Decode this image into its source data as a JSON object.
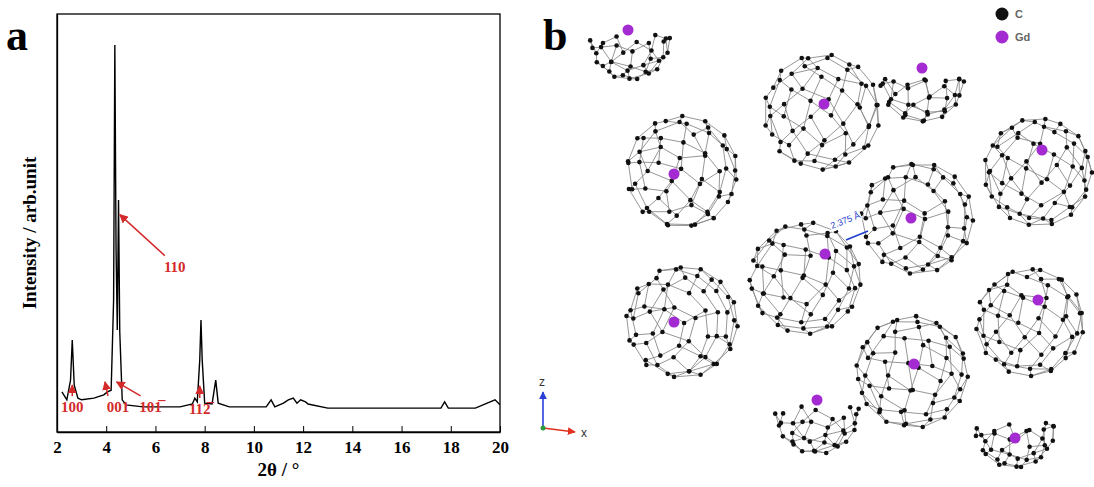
{
  "chart_data": {
    "type": "line",
    "panel_label": "a",
    "x_label": "2θ / °",
    "y_label": "Intensity / arb.unit",
    "color": "#000000",
    "grid": false,
    "tick_labels": "x",
    "xlim": [
      2,
      20
    ],
    "xticks": [
      2,
      4,
      6,
      8,
      10,
      12,
      14,
      16,
      18,
      20
    ],
    "ylim": [
      0,
      100
    ],
    "x": [
      2.2,
      2.4,
      2.55,
      2.62,
      2.7,
      2.85,
      3.0,
      3.5,
      3.9,
      4.05,
      4.2,
      4.3,
      4.35,
      4.4,
      4.45,
      4.5,
      4.55,
      4.65,
      4.8,
      5.5,
      6.5,
      7.0,
      7.5,
      7.6,
      7.7,
      7.8,
      7.85,
      7.9,
      8.0,
      8.3,
      8.45,
      8.55,
      9.0,
      10.5,
      10.7,
      10.85,
      11.2,
      11.4,
      11.6,
      11.75,
      11.9,
      12.1,
      12.2,
      13.0,
      15.0,
      17.6,
      17.75,
      17.9,
      19.0,
      19.6,
      19.8,
      20.0
    ],
    "values": [
      9.6,
      7.7,
      12.4,
      22.0,
      11.2,
      8.1,
      7.7,
      8.1,
      8.9,
      9.6,
      10.0,
      31.6,
      92.6,
      43.5,
      24.4,
      55.5,
      24.0,
      7.7,
      6.5,
      6.0,
      6.0,
      6.0,
      6.7,
      8.1,
      7.2,
      17.2,
      26.8,
      17.2,
      6.9,
      6.7,
      12.4,
      6.9,
      6.0,
      6.0,
      7.7,
      6.0,
      6.9,
      7.7,
      8.1,
      6.9,
      7.7,
      7.2,
      6.7,
      5.7,
      5.7,
      5.7,
      7.2,
      5.7,
      5.7,
      7.2,
      7.7,
      6.5
    ],
    "annotations": [
      {
        "text": "100",
        "x": 2.62,
        "y": 11.2
      },
      {
        "text": "001",
        "x": 3.95,
        "y": 12.0
      },
      {
        "text": "101̅",
        "x": 4.42,
        "y": 12.0
      },
      {
        "text": "110",
        "x": 4.55,
        "y": 52.0
      },
      {
        "text": "112̅",
        "x": 7.8,
        "y": 11.0
      }
    ]
  },
  "diagram": {
    "panel_label": "b",
    "legend": [
      {
        "label": "C",
        "color": "#111111"
      },
      {
        "label": "Gd",
        "color": "#a32bd1"
      }
    ],
    "distance_label": "2.375 Å",
    "axes": [
      "z",
      "x"
    ]
  }
}
